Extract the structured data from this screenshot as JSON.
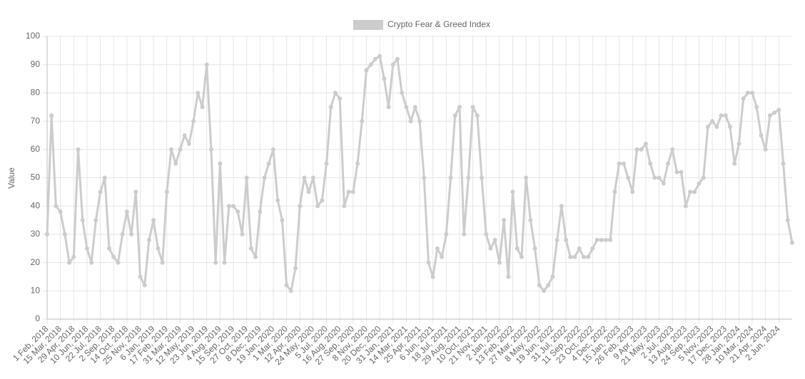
{
  "chart_data": {
    "type": "line",
    "series": [
      {
        "name": "Crypto Fear & Greed Index",
        "color": "#cccccc",
        "values": [
          30,
          72,
          40,
          38,
          30,
          20,
          22,
          60,
          35,
          25,
          20,
          35,
          45,
          50,
          25,
          22,
          20,
          30,
          38,
          30,
          45,
          15,
          12,
          28,
          35,
          25,
          20,
          45,
          60,
          55,
          60,
          65,
          62,
          70,
          80,
          75,
          90,
          60,
          20,
          55,
          20,
          40,
          40,
          38,
          30,
          50,
          25,
          22,
          38,
          50,
          55,
          60,
          42,
          35,
          12,
          10,
          18,
          40,
          50,
          45,
          50,
          40,
          42,
          55,
          75,
          80,
          78,
          40,
          45,
          45,
          55,
          70,
          88,
          90,
          92,
          93,
          85,
          75,
          90,
          92,
          80,
          75,
          70,
          75,
          70,
          50,
          20,
          15,
          25,
          22,
          30,
          50,
          72,
          75,
          30,
          50,
          75,
          72,
          50,
          30,
          25,
          28,
          20,
          35,
          15,
          45,
          25,
          22,
          50,
          35,
          25,
          12,
          10,
          12,
          15,
          28,
          40,
          28,
          22,
          22,
          25,
          22,
          22,
          25,
          28,
          28,
          28,
          28,
          45,
          55,
          55,
          50,
          45,
          60,
          60,
          62,
          55,
          50,
          50,
          48,
          55,
          60,
          52,
          52,
          40,
          45,
          45,
          48,
          50,
          68,
          70,
          68,
          72,
          72,
          68,
          55,
          62,
          78,
          80,
          80,
          75,
          65,
          60,
          72,
          73,
          74,
          55,
          35,
          27
        ]
      }
    ],
    "categories": [
      "1 Feb, 2018",
      null,
      null,
      "15 Mar, 2018",
      null,
      null,
      "29 Apr, 2018",
      null,
      null,
      "10 Jun, 2018",
      null,
      null,
      "22 Jul, 2018",
      null,
      null,
      "2 Sep, 2018",
      null,
      null,
      "14 Oct, 2018",
      null,
      null,
      "25 Nov, 2018",
      null,
      null,
      "6 Jan, 2019",
      null,
      null,
      "17 Feb, 2019",
      null,
      null,
      "31 Mar, 2019",
      null,
      null,
      "12 May, 2019",
      null,
      null,
      "23 Jun, 2019",
      null,
      null,
      "4 Aug, 2019",
      null,
      null,
      "15 Sep, 2019",
      null,
      null,
      "27 Oct, 2019",
      null,
      null,
      "8 Dec, 2019",
      null,
      null,
      "19 Jan, 2020",
      null,
      null,
      "1 Mar, 2020",
      null,
      null,
      "12 Apr, 2020",
      null,
      null,
      "24 May, 2020",
      null,
      null,
      "5 Jul, 2020",
      null,
      null,
      "16 Aug, 2020",
      null,
      null,
      "27 Sep, 2020",
      null,
      null,
      "8 Nov, 2020",
      null,
      null,
      "20 Dec, 2020",
      null,
      null,
      "31 Jan, 2021",
      null,
      null,
      "14 Mar, 2021",
      null,
      null,
      "25 Apr, 2021",
      null,
      null,
      "6 Jun, 2021",
      null,
      null,
      "18 Jul, 2021",
      null,
      null,
      "29 Aug, 2021",
      null,
      null,
      "10 Oct, 2021",
      null,
      null,
      "21 Nov, 2021",
      null,
      null,
      "2 Jan, 2022",
      null,
      null,
      "13 Feb, 2022",
      null,
      null,
      "27 Mar, 2022",
      null,
      null,
      "8 May, 2022",
      null,
      null,
      "19 Jun, 2022",
      null,
      null,
      "31 Jul, 2022",
      null,
      null,
      "11 Sep, 2022",
      null,
      null,
      "23 Oct, 2022",
      null,
      null,
      "4 Dec, 2022",
      null,
      null,
      "15 Jan, 2023",
      null,
      null,
      "26 Feb, 2023",
      null,
      null,
      "9 Apr, 2023",
      null,
      null,
      "21 May, 2023",
      null,
      null,
      "2 Jul, 2023",
      null,
      null,
      "13 Aug, 2023",
      null,
      null,
      "24 Sep, 2023",
      null,
      null,
      "5 Nov, 2023",
      null,
      null,
      "17 Dec, 2023",
      null,
      null,
      "28 Jan, 2024",
      null,
      null,
      "10 Mar, 2024",
      null,
      null,
      "21 Apr, 2024",
      null,
      null,
      "2 Jun, 2024",
      null,
      null,
      null
    ],
    "y_label": "Value",
    "ylim": [
      0,
      100
    ],
    "yticks": [
      0,
      10,
      20,
      30,
      40,
      50,
      60,
      70,
      80,
      90,
      100
    ],
    "grid": true,
    "legend": "top"
  }
}
